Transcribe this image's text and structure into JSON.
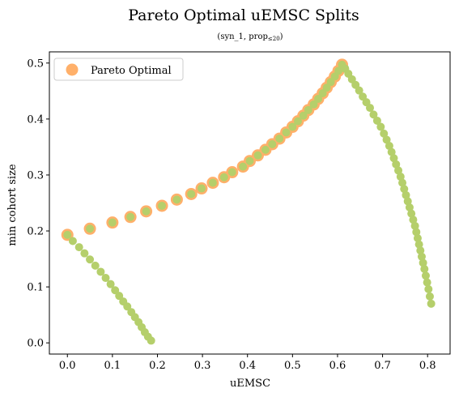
{
  "chart_data": {
    "type": "scatter",
    "title": "Pareto Optimal uEMSC Splits",
    "subtitle": "(syn_1, prop",
    "subtitle_sub": "≤20",
    "subtitle_end": ")",
    "xlabel": "uEMSC",
    "ylabel": "min cohort size",
    "xlim": [
      -0.04,
      0.85
    ],
    "ylim": [
      -0.02,
      0.52
    ],
    "xticks": [
      0.0,
      0.1,
      0.2,
      0.3,
      0.4,
      0.5,
      0.6,
      0.7,
      0.8
    ],
    "yticks": [
      0.0,
      0.1,
      0.2,
      0.3,
      0.4,
      0.5
    ],
    "legend": {
      "position": "top-left",
      "entries": [
        "Pareto Optimal"
      ]
    },
    "colors": {
      "pareto": "#ffb06a",
      "all": "#b5cf6b"
    },
    "series": [
      {
        "role": "pareto",
        "x": [
          0.0,
          0.05,
          0.1,
          0.14,
          0.175,
          0.21,
          0.243,
          0.275,
          0.298,
          0.323,
          0.348,
          0.366,
          0.39,
          0.405,
          0.423,
          0.44,
          0.455,
          0.471,
          0.486,
          0.5,
          0.512,
          0.524,
          0.535,
          0.547,
          0.557,
          0.567,
          0.576,
          0.585,
          0.594,
          0.602,
          0.61
        ],
        "y": [
          0.193,
          0.204,
          0.215,
          0.225,
          0.235,
          0.245,
          0.256,
          0.266,
          0.276,
          0.286,
          0.296,
          0.305,
          0.315,
          0.325,
          0.335,
          0.345,
          0.355,
          0.365,
          0.376,
          0.386,
          0.396,
          0.406,
          0.416,
          0.426,
          0.436,
          0.446,
          0.456,
          0.466,
          0.476,
          0.486,
          0.497
        ]
      },
      {
        "role": "all",
        "x": [
          0.0,
          0.05,
          0.1,
          0.14,
          0.175,
          0.21,
          0.243,
          0.275,
          0.298,
          0.323,
          0.348,
          0.366,
          0.39,
          0.405,
          0.423,
          0.44,
          0.455,
          0.471,
          0.486,
          0.5,
          0.512,
          0.524,
          0.535,
          0.547,
          0.557,
          0.567,
          0.576,
          0.585,
          0.594,
          0.602,
          0.61,
          0.617,
          0.624,
          0.632,
          0.64,
          0.648,
          0.656,
          0.664,
          0.672,
          0.68,
          0.688,
          0.696,
          0.703,
          0.709,
          0.715,
          0.72,
          0.725,
          0.73,
          0.735,
          0.74,
          0.744,
          0.748,
          0.752,
          0.756,
          0.76,
          0.764,
          0.768,
          0.772,
          0.775,
          0.778,
          0.781,
          0.784,
          0.787,
          0.79,
          0.793,
          0.796,
          0.799,
          0.802,
          0.805,
          0.808,
          0.012,
          0.026,
          0.038,
          0.05,
          0.062,
          0.074,
          0.085,
          0.096,
          0.106,
          0.115,
          0.124,
          0.133,
          0.142,
          0.15,
          0.158,
          0.165,
          0.172,
          0.179,
          0.186
        ],
        "y": [
          0.193,
          0.204,
          0.215,
          0.225,
          0.235,
          0.245,
          0.256,
          0.266,
          0.276,
          0.286,
          0.296,
          0.305,
          0.315,
          0.325,
          0.335,
          0.345,
          0.355,
          0.365,
          0.376,
          0.386,
          0.396,
          0.406,
          0.416,
          0.426,
          0.436,
          0.446,
          0.456,
          0.466,
          0.476,
          0.486,
          0.497,
          0.49,
          0.481,
          0.471,
          0.461,
          0.451,
          0.44,
          0.43,
          0.42,
          0.408,
          0.397,
          0.386,
          0.374,
          0.363,
          0.352,
          0.341,
          0.33,
          0.319,
          0.308,
          0.297,
          0.286,
          0.275,
          0.264,
          0.253,
          0.242,
          0.231,
          0.22,
          0.209,
          0.198,
          0.187,
          0.176,
          0.165,
          0.154,
          0.143,
          0.132,
          0.12,
          0.108,
          0.096,
          0.083,
          0.07,
          0.182,
          0.171,
          0.16,
          0.149,
          0.138,
          0.127,
          0.116,
          0.105,
          0.094,
          0.084,
          0.074,
          0.065,
          0.055,
          0.046,
          0.037,
          0.028,
          0.019,
          0.011,
          0.004
        ]
      }
    ]
  }
}
